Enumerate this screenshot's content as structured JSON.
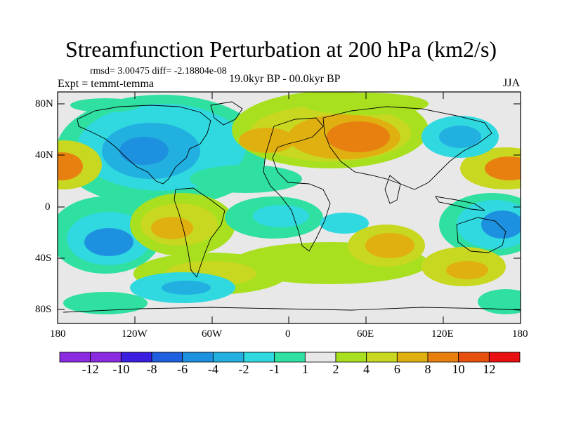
{
  "header": {
    "title": "Streamfunction Perturbation at 200 hPa (km2/s)",
    "stats": "rmsd= 3.00475 diff= -2.18804e-08",
    "experiment": "Expt = temmt-temma",
    "period": "19.0kyr BP - 00.0kyr BP",
    "season": "JJA"
  },
  "axes": {
    "y_ticks": [
      "80N",
      "40N",
      "0",
      "40S",
      "80S"
    ],
    "x_ticks": [
      "180",
      "120W",
      "60W",
      "0",
      "60E",
      "120E",
      "180"
    ]
  },
  "colorbar": {
    "labels": [
      "-12",
      "-10",
      "-8",
      "-6",
      "-4",
      "-2",
      "-1",
      "1",
      "2",
      "4",
      "6",
      "8",
      "10",
      "12"
    ],
    "colors": [
      "#8a2be2",
      "#3a1fe0",
      "#1f5fe0",
      "#1e90e0",
      "#22b0e0",
      "#30d8e0",
      "#30e0a0",
      "#e8e8e8",
      "#a8e020",
      "#c8d820",
      "#e0b010",
      "#e88010",
      "#e85010",
      "#e81010"
    ]
  },
  "chart_data": {
    "type": "heatmap",
    "title": "Streamfunction Perturbation at 200 hPa (km2/s)",
    "x_range": [
      -180,
      180
    ],
    "y_range": [
      -90,
      90
    ],
    "levels": [
      -12,
      -10,
      -8,
      -6,
      -4,
      -2,
      -1,
      1,
      2,
      4,
      6,
      8,
      10,
      12
    ]
  }
}
